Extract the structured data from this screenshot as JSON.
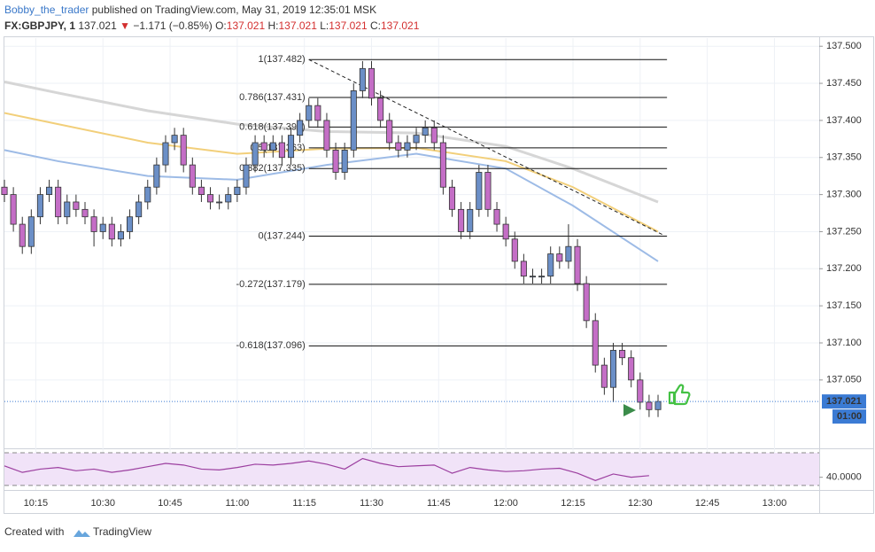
{
  "header": {
    "author": "Bobby_the_trader",
    "published": "published on TradingView.com, May 31, 2019 12:35:01 MSK",
    "symbol": "FX:GBPJPY, 1",
    "last": "137.021",
    "arrow": "▼",
    "change": "−1.171 (−0.85%)",
    "o_label": "O:",
    "o": "137.021",
    "h_label": "H:",
    "h": "137.021",
    "l_label": "L:",
    "l": "137.021",
    "c_label": "C:",
    "c": "137.021"
  },
  "footer": {
    "created": "Created with",
    "brand": "TradingView"
  },
  "chart_data": [
    {
      "type": "candlestick",
      "up_color": "#6b8fc7",
      "down_color": "#c46ec6",
      "x": [
        "10:08",
        "10:10",
        "10:12",
        "10:14",
        "10:16",
        "10:18",
        "10:20",
        "10:22",
        "10:24",
        "10:26",
        "10:28",
        "10:30",
        "10:32",
        "10:34",
        "10:36",
        "10:38",
        "10:40",
        "10:42",
        "10:44",
        "10:46",
        "10:48",
        "10:50",
        "10:52",
        "10:54",
        "10:56",
        "10:58",
        "11:00",
        "11:02",
        "11:04",
        "11:06",
        "11:08",
        "11:10",
        "11:12",
        "11:14",
        "11:16",
        "11:18",
        "11:20",
        "11:22",
        "11:24",
        "11:26",
        "11:28",
        "11:30",
        "11:32",
        "11:34",
        "11:36",
        "11:38",
        "11:40",
        "11:42",
        "11:44",
        "11:46",
        "11:48",
        "11:50",
        "11:52",
        "11:54",
        "11:56",
        "11:58",
        "12:00",
        "12:02",
        "12:04",
        "12:06",
        "12:08",
        "12:10",
        "12:12",
        "12:14",
        "12:16",
        "12:18",
        "12:20",
        "12:22",
        "12:24",
        "12:26",
        "12:28",
        "12:30",
        "12:32",
        "12:34"
      ],
      "ohlc": [
        [
          137.31,
          137.32,
          137.29,
          137.3
        ],
        [
          137.3,
          137.31,
          137.25,
          137.26
        ],
        [
          137.26,
          137.27,
          137.22,
          137.23
        ],
        [
          137.23,
          137.28,
          137.22,
          137.27
        ],
        [
          137.27,
          137.31,
          137.26,
          137.3
        ],
        [
          137.3,
          137.32,
          137.29,
          137.31
        ],
        [
          137.31,
          137.32,
          137.26,
          137.27
        ],
        [
          137.27,
          137.3,
          137.26,
          137.29
        ],
        [
          137.29,
          137.3,
          137.27,
          137.28
        ],
        [
          137.28,
          137.29,
          137.26,
          137.27
        ],
        [
          137.27,
          137.28,
          137.23,
          137.25
        ],
        [
          137.25,
          137.27,
          137.24,
          137.26
        ],
        [
          137.26,
          137.27,
          137.23,
          137.24
        ],
        [
          137.24,
          137.26,
          137.23,
          137.25
        ],
        [
          137.25,
          137.28,
          137.24,
          137.27
        ],
        [
          137.27,
          137.3,
          137.26,
          137.29
        ],
        [
          137.29,
          137.32,
          137.28,
          137.31
        ],
        [
          137.31,
          137.35,
          137.3,
          137.34
        ],
        [
          137.34,
          137.38,
          137.33,
          137.37
        ],
        [
          137.37,
          137.39,
          137.36,
          137.38
        ],
        [
          137.38,
          137.39,
          137.33,
          137.34
        ],
        [
          137.34,
          137.35,
          137.3,
          137.31
        ],
        [
          137.31,
          137.32,
          137.29,
          137.3
        ],
        [
          137.3,
          137.31,
          137.28,
          137.29
        ],
        [
          137.29,
          137.3,
          137.28,
          137.29
        ],
        [
          137.29,
          137.31,
          137.28,
          137.3
        ],
        [
          137.3,
          137.32,
          137.29,
          137.31
        ],
        [
          137.31,
          137.35,
          137.3,
          137.34
        ],
        [
          137.34,
          137.38,
          137.33,
          137.37
        ],
        [
          137.37,
          137.38,
          137.35,
          137.36
        ],
        [
          137.36,
          137.38,
          137.35,
          137.37
        ],
        [
          137.37,
          137.38,
          137.34,
          137.35
        ],
        [
          137.35,
          137.39,
          137.34,
          137.38
        ],
        [
          137.38,
          137.41,
          137.37,
          137.4
        ],
        [
          137.4,
          137.43,
          137.39,
          137.42
        ],
        [
          137.42,
          137.43,
          137.39,
          137.4
        ],
        [
          137.4,
          137.41,
          137.35,
          137.36
        ],
        [
          137.36,
          137.37,
          137.32,
          137.33
        ],
        [
          137.33,
          137.37,
          137.32,
          137.36
        ],
        [
          137.36,
          137.45,
          137.35,
          137.44
        ],
        [
          137.44,
          137.48,
          137.43,
          137.47
        ],
        [
          137.47,
          137.48,
          137.42,
          137.43
        ],
        [
          137.43,
          137.44,
          137.39,
          137.4
        ],
        [
          137.4,
          137.41,
          137.36,
          137.37
        ],
        [
          137.37,
          137.38,
          137.35,
          137.36
        ],
        [
          137.36,
          137.38,
          137.35,
          137.37
        ],
        [
          137.37,
          137.39,
          137.36,
          137.38
        ],
        [
          137.38,
          137.4,
          137.37,
          137.39
        ],
        [
          137.39,
          137.4,
          137.36,
          137.37
        ],
        [
          137.37,
          137.38,
          137.3,
          137.31
        ],
        [
          137.31,
          137.32,
          137.27,
          137.28
        ],
        [
          137.28,
          137.29,
          137.24,
          137.25
        ],
        [
          137.25,
          137.29,
          137.24,
          137.28
        ],
        [
          137.28,
          137.34,
          137.27,
          137.33
        ],
        [
          137.33,
          137.34,
          137.27,
          137.28
        ],
        [
          137.28,
          137.29,
          137.25,
          137.26
        ],
        [
          137.26,
          137.27,
          137.23,
          137.24
        ],
        [
          137.24,
          137.25,
          137.2,
          137.21
        ],
        [
          137.21,
          137.22,
          137.18,
          137.19
        ],
        [
          137.19,
          137.2,
          137.18,
          137.19
        ],
        [
          137.19,
          137.2,
          137.18,
          137.19
        ],
        [
          137.19,
          137.23,
          137.18,
          137.22
        ],
        [
          137.22,
          137.23,
          137.2,
          137.21
        ],
        [
          137.21,
          137.26,
          137.2,
          137.23
        ],
        [
          137.23,
          137.24,
          137.17,
          137.18
        ],
        [
          137.18,
          137.19,
          137.12,
          137.13
        ],
        [
          137.13,
          137.14,
          137.06,
          137.07
        ],
        [
          137.07,
          137.08,
          137.03,
          137.04
        ],
        [
          137.04,
          137.1,
          137.02,
          137.09
        ],
        [
          137.09,
          137.1,
          137.07,
          137.08
        ],
        [
          137.08,
          137.09,
          137.04,
          137.05
        ],
        [
          137.05,
          137.06,
          137.01,
          137.02
        ],
        [
          137.02,
          137.03,
          137.0,
          137.01
        ],
        [
          137.01,
          137.03,
          137.0,
          137.021
        ]
      ],
      "ma_x": [
        "10:08",
        "10:20",
        "10:40",
        "11:00",
        "11:20",
        "11:40",
        "12:00",
        "12:15",
        "12:34"
      ],
      "moving_averages": [
        {
          "color": "#d6d6d6",
          "values": [
            137.452,
            137.437,
            137.413,
            137.395,
            137.385,
            137.383,
            137.365,
            137.335,
            137.29
          ]
        },
        {
          "color": "#f2cf7a",
          "values": [
            137.41,
            137.395,
            137.37,
            137.355,
            137.362,
            137.363,
            137.345,
            137.31,
            137.25
          ]
        },
        {
          "color": "#9dbbe6",
          "values": [
            137.36,
            137.345,
            137.325,
            137.32,
            137.34,
            137.355,
            137.335,
            137.285,
            137.21
          ]
        }
      ],
      "fib_range": [
        "11:16",
        "12:36"
      ],
      "fib_levels": [
        {
          "value": 137.482,
          "label": "1(137.482)"
        },
        {
          "value": 137.431,
          "label": "0.786(137.431)"
        },
        {
          "value": 137.391,
          "label": "0.618(137.391)"
        },
        {
          "value": 137.363,
          "label": "0.5(137.363)"
        },
        {
          "value": 137.335,
          "label": "0.382(137.335)"
        },
        {
          "value": 137.244,
          "label": "0(137.244)"
        },
        {
          "value": 137.179,
          "label": "-0.272(137.179)"
        },
        {
          "value": 137.096,
          "label": "-0.618(137.096)"
        }
      ],
      "trendline": {
        "x": [
          "11:16",
          "12:35"
        ],
        "y": [
          137.482,
          137.246
        ]
      },
      "last_price": {
        "value": 137.021,
        "label": "137.021"
      },
      "countdown": "01:00",
      "xlim": [
        "10:08",
        "13:10"
      ],
      "xticks": [
        "10:15",
        "10:30",
        "10:45",
        "11:00",
        "11:15",
        "11:30",
        "11:45",
        "12:00",
        "12:15",
        "12:30",
        "12:45",
        "13:00"
      ],
      "ylim": [
        136.959,
        137.511
      ],
      "yticks": [
        {
          "value": 137.05,
          "label": "137.050"
        },
        {
          "value": 137.1,
          "label": "137.100"
        },
        {
          "value": 137.15,
          "label": "137.150"
        },
        {
          "value": 137.2,
          "label": "137.200"
        },
        {
          "value": 137.25,
          "label": "137.250"
        },
        {
          "value": 137.3,
          "label": "137.300"
        },
        {
          "value": 137.35,
          "label": "137.350"
        },
        {
          "value": 137.4,
          "label": "137.400"
        },
        {
          "value": 137.45,
          "label": "137.450"
        },
        {
          "value": 137.5,
          "label": "137.500"
        }
      ],
      "grid": true
    },
    {
      "type": "line",
      "color": "#9c3fa0",
      "band_color": "#f1e3f8",
      "bands": [
        30,
        70
      ],
      "x": [
        "10:08",
        "10:12",
        "10:16",
        "10:20",
        "10:24",
        "10:28",
        "10:32",
        "10:36",
        "10:40",
        "10:44",
        "10:48",
        "10:52",
        "10:56",
        "11:00",
        "11:04",
        "11:08",
        "11:12",
        "11:16",
        "11:20",
        "11:24",
        "11:28",
        "11:32",
        "11:36",
        "11:40",
        "11:44",
        "11:48",
        "11:52",
        "11:56",
        "12:00",
        "12:04",
        "12:08",
        "12:12",
        "12:16",
        "12:20",
        "12:24",
        "12:28",
        "12:32"
      ],
      "values": [
        54,
        46,
        50,
        52,
        48,
        50,
        46,
        49,
        53,
        57,
        55,
        50,
        49,
        52,
        56,
        55,
        57,
        60,
        56,
        50,
        63,
        57,
        53,
        54,
        55,
        45,
        52,
        49,
        47,
        48,
        50,
        51,
        45,
        36,
        44,
        40,
        42
      ],
      "ylim": [
        24.4,
        74.4
      ],
      "yticks": [
        {
          "value": 40,
          "label": "40.0000"
        }
      ]
    }
  ]
}
